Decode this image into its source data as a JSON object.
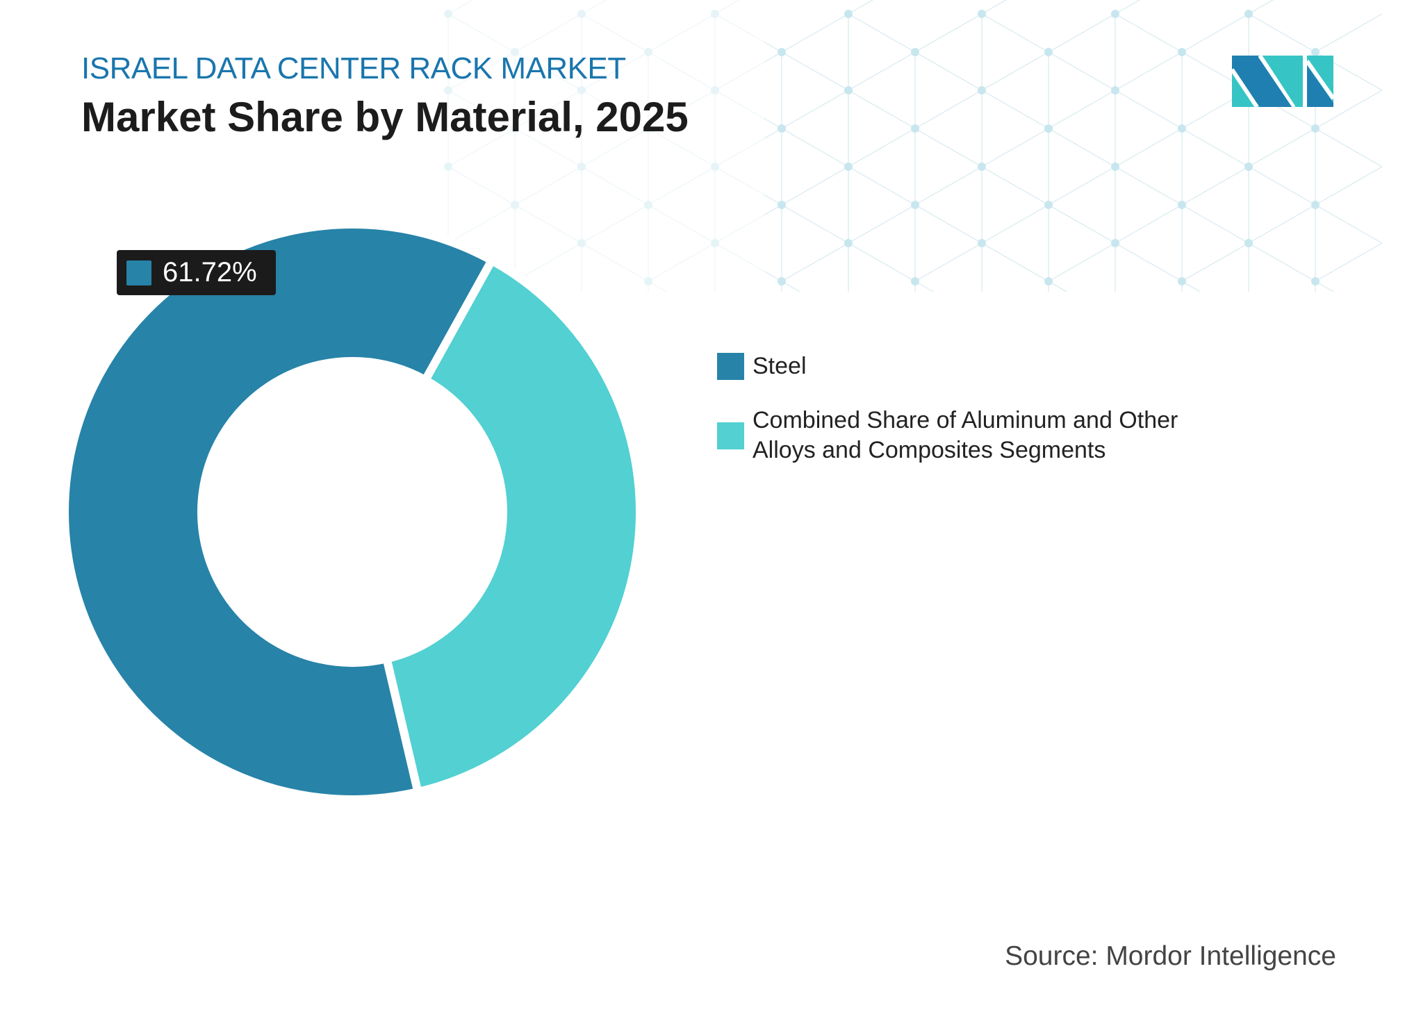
{
  "header": {
    "kicker": "ISRAEL DATA CENTER RACK MARKET",
    "title": "Market Share by Material, 2025"
  },
  "chart_data": {
    "type": "pie",
    "style": "donut",
    "categories": [
      "Steel",
      "Combined Share of Aluminum and Other Alloys and Composites Segments"
    ],
    "values": [
      61.72,
      38.28
    ],
    "colors": [
      "#2783a8",
      "#52d0d2"
    ],
    "data_labels": [
      {
        "category": "Steel",
        "text": "61.72%"
      }
    ],
    "legend_placement": "right"
  },
  "legend": [
    {
      "label": "Steel",
      "color": "#2783a8"
    },
    {
      "label": "Combined Share of Aluminum and Other Alloys and Composites Segments",
      "color": "#52d0d2"
    }
  ],
  "footer": {
    "source": "Source: Mordor Intelligence"
  },
  "logo": {
    "text": "MI",
    "colors": [
      "#1f7fb0",
      "#37c4c4"
    ]
  }
}
